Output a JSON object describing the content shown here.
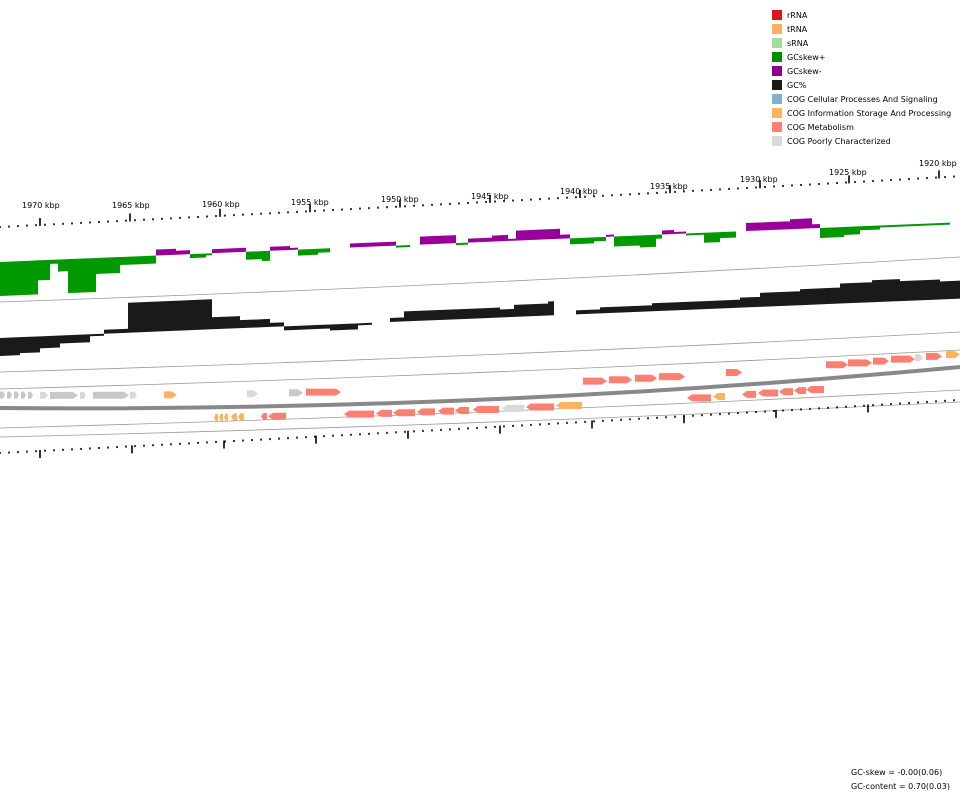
{
  "legend": [
    {
      "label": "rRNA",
      "color": "#d7191c",
      "icon": "square-swatch"
    },
    {
      "label": "tRNA",
      "color": "#fdae61",
      "icon": "square-swatch"
    },
    {
      "label": "sRNA",
      "color": "#a6dba0",
      "icon": "square-swatch"
    },
    {
      "label": "GCskew+",
      "color": "#008f00",
      "icon": "square-swatch"
    },
    {
      "label": "GCskew-",
      "color": "#8f008f",
      "icon": "square-swatch"
    },
    {
      "label": "GC%",
      "color": "#1a1a1a",
      "icon": "square-swatch"
    },
    {
      "label": "COG Cellular Processes And Signaling",
      "color": "#80b1d3",
      "icon": "square-swatch"
    },
    {
      "label": "COG Information Storage And Processing",
      "color": "#fdb462",
      "icon": "square-swatch"
    },
    {
      "label": "COG Metabolism",
      "color": "#fb8072",
      "icon": "square-swatch"
    },
    {
      "label": "COG Poorly Characterized",
      "color": "#d9d9d9",
      "icon": "square-swatch"
    }
  ],
  "axis_labels": [
    "1970 kbp",
    "1965 kbp",
    "1960 kbp",
    "1955 kbp",
    "1950 kbp",
    "1945 kbp",
    "1940 kbp",
    "1935 kbp",
    "1930 kbp",
    "1925 kbp",
    "1920 kbp"
  ],
  "stats": {
    "gc_skew": "GC-skew = -0.00(0.06)",
    "gc_content": "GC-content = 0.70(0.03)"
  },
  "colors": {
    "gc_skew_plus": "#009900",
    "gc_skew_minus": "#990099",
    "gc_content": "#1a1a1a",
    "cog_metabolism": "#fb8072",
    "cog_info": "#fdb462",
    "cog_poor": "#c8c8c8",
    "cog_poor_light": "#d9d9d9",
    "backbone": "#888888"
  }
}
